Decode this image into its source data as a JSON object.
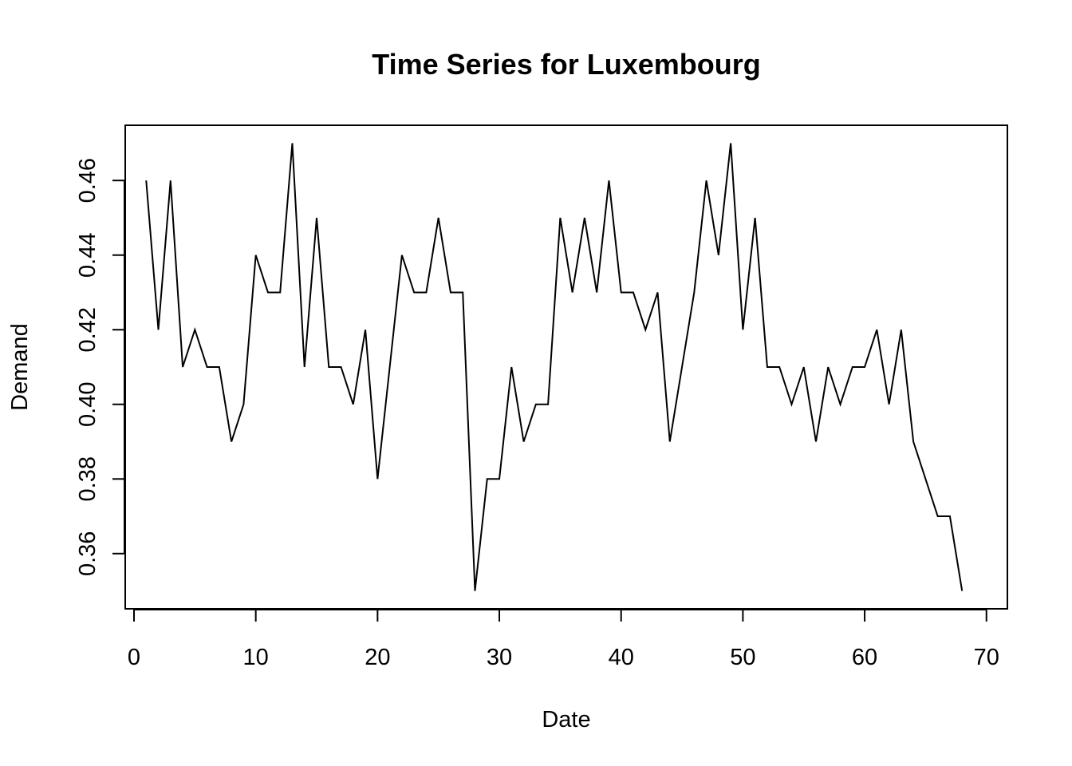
{
  "chart_data": {
    "type": "line",
    "title": "Time Series for Luxembourg",
    "xlabel": "Date",
    "ylabel": "Demand",
    "xlim": [
      -0.72,
      71.72
    ],
    "ylim": [
      0.3452,
      0.4748
    ],
    "x_ticks": [
      0,
      10,
      20,
      30,
      40,
      50,
      60,
      70
    ],
    "x_tick_labels": [
      "0",
      "10",
      "20",
      "30",
      "40",
      "50",
      "60",
      "70"
    ],
    "y_ticks": [
      0.36,
      0.38,
      0.4,
      0.42,
      0.44,
      0.46
    ],
    "y_tick_labels": [
      "0.36",
      "0.38",
      "0.40",
      "0.42",
      "0.44",
      "0.46"
    ],
    "grid": false,
    "legend": "none",
    "line_color": "#000000",
    "x": [
      1,
      2,
      3,
      4,
      5,
      6,
      7,
      8,
      9,
      10,
      11,
      12,
      13,
      14,
      15,
      16,
      17,
      18,
      19,
      20,
      21,
      22,
      23,
      24,
      25,
      26,
      27,
      28,
      29,
      30,
      31,
      32,
      33,
      34,
      35,
      36,
      37,
      38,
      39,
      40,
      41,
      42,
      43,
      44,
      45,
      46,
      47,
      48,
      49,
      50,
      51,
      52,
      53,
      54,
      55,
      56,
      57,
      58,
      59,
      60,
      61,
      62,
      63,
      64,
      65,
      66,
      67,
      68
    ],
    "series": [
      {
        "values": [
          0.46,
          0.42,
          0.46,
          0.41,
          0.42,
          0.41,
          0.41,
          0.39,
          0.4,
          0.44,
          0.43,
          0.43,
          0.47,
          0.41,
          0.45,
          0.41,
          0.41,
          0.4,
          0.42,
          0.38,
          0.41,
          0.44,
          0.43,
          0.43,
          0.45,
          0.43,
          0.43,
          0.35,
          0.38,
          0.38,
          0.41,
          0.39,
          0.4,
          0.4,
          0.45,
          0.43,
          0.45,
          0.43,
          0.46,
          0.43,
          0.43,
          0.42,
          0.43,
          0.39,
          0.41,
          0.43,
          0.46,
          0.44,
          0.47,
          0.42,
          0.45,
          0.41,
          0.41,
          0.4,
          0.41,
          0.39,
          0.41,
          0.4,
          0.41,
          0.41,
          0.42,
          0.4,
          0.42,
          0.39,
          0.38,
          0.37,
          0.37,
          0.35
        ]
      }
    ]
  }
}
